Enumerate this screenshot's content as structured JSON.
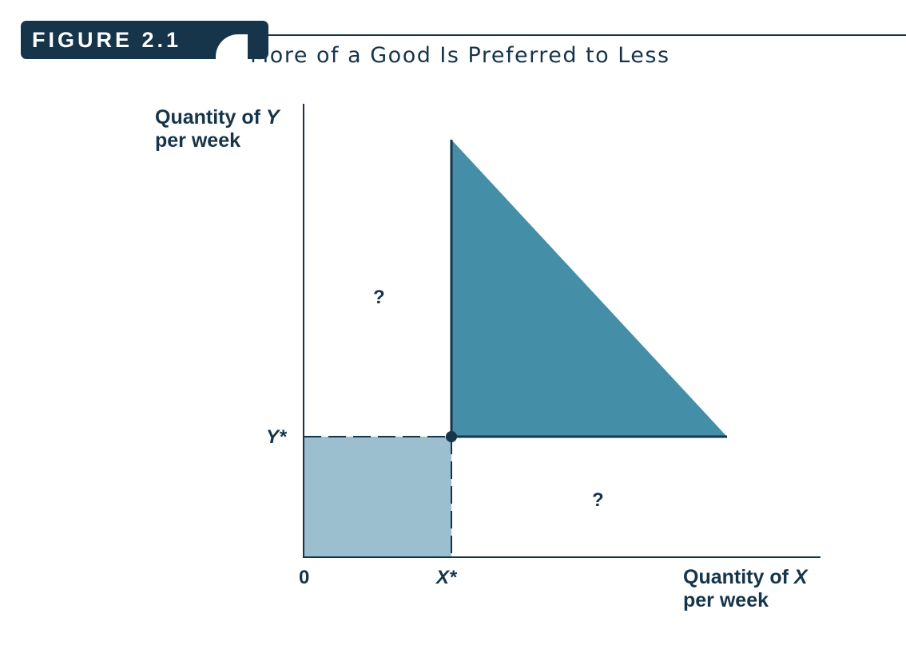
{
  "figure": {
    "label": "FIGURE 2.1",
    "title": "More of a Good Is Preferred to Less"
  },
  "axes": {
    "y_label_line1": "Quantity of Y",
    "y_label_line1_prefix": "Quantity of ",
    "y_label_line1_var": "Y",
    "y_label_line2": "per week",
    "x_label_line1": "Quantity of X",
    "x_label_line1_prefix": "Quantity of ",
    "x_label_line1_var": "X",
    "x_label_line2": "per week",
    "origin": "0",
    "x_star": "X*",
    "y_star": "Y*"
  },
  "regions": {
    "upper_left_mark": "?",
    "lower_right_mark": "?"
  },
  "colors": {
    "ink": "#16344a",
    "preferred_region": "#448ea8",
    "inferior_region": "#9bbfcf",
    "background": "#ffffff"
  }
}
